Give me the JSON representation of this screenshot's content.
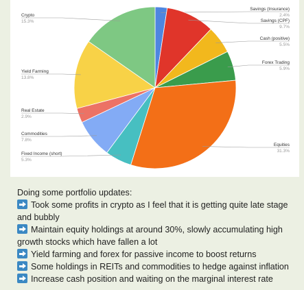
{
  "chart_data": {
    "type": "pie",
    "title": "",
    "slices": [
      {
        "label": "Savings (Insurance)",
        "pct_label": "2.4%",
        "value": 2.4,
        "color": "#4e86e0"
      },
      {
        "label": "Savings (CPF)",
        "pct_label": "9.7%",
        "value": 9.7,
        "color": "#e0352a"
      },
      {
        "label": "Cash (positive)",
        "pct_label": "5.5%",
        "value": 5.5,
        "color": "#f2b81d"
      },
      {
        "label": "Forex Trading",
        "pct_label": "5.9%",
        "value": 5.9,
        "color": "#3a9c4c"
      },
      {
        "label": "Equities",
        "pct_label": "31.3%",
        "value": 31.3,
        "color": "#f36f17"
      },
      {
        "label": "Fixed Income (short)",
        "pct_label": "5.3%",
        "value": 5.3,
        "color": "#47bfc1"
      },
      {
        "label": "Commodities",
        "pct_label": "7.8%",
        "value": 7.8,
        "color": "#83abf5"
      },
      {
        "label": "Real Estate",
        "pct_label": "2.9%",
        "value": 2.9,
        "color": "#ec7265"
      },
      {
        "label": "Yield Farming",
        "pct_label": "13.8%",
        "value": 13.8,
        "color": "#f8d247"
      },
      {
        "label": "Crypto",
        "pct_label": "15.3%",
        "value": 15.3,
        "color": "#7ec883"
      }
    ],
    "legend": "none"
  },
  "post": {
    "intro": "Doing some portfolio updates:",
    "bullets": [
      "Took some profits in crypto as I feel that it is getting quite late stage and bubbly",
      "Maintain equity holdings at around 30%, slowly accumulating high growth stocks which have fallen a lot",
      "Yield farming and forex for passive income to boost returns",
      "Some holdings in REITs and commodities to hedge against inflation",
      "Increase cash position and waiting on the marginal interest rate"
    ]
  },
  "icons": {
    "bullet": "arrow-right-icon"
  }
}
